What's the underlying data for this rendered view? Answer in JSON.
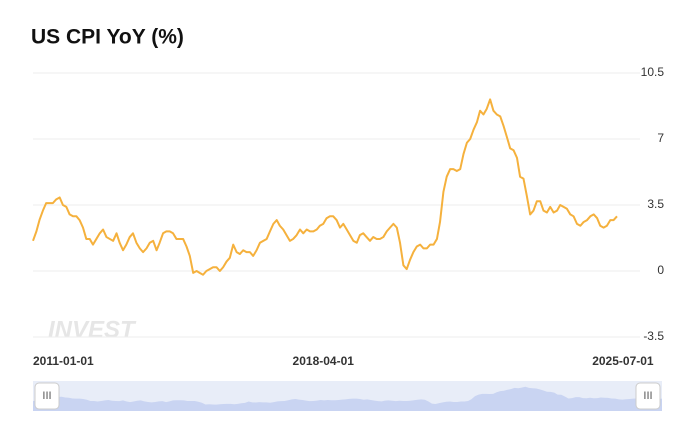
{
  "chart_data": {
    "type": "line",
    "title": "US CPI YoY (%)",
    "watermark": "INVEST",
    "x": [
      "2011-01-01",
      "2011-02-01",
      "2011-03-01",
      "2011-04-01",
      "2011-05-01",
      "2011-06-01",
      "2011-07-01",
      "2011-08-01",
      "2011-09-01",
      "2011-10-01",
      "2011-11-01",
      "2011-12-01",
      "2012-01-01",
      "2012-02-01",
      "2012-03-01",
      "2012-04-01",
      "2012-05-01",
      "2012-06-01",
      "2012-07-01",
      "2012-08-01",
      "2012-09-01",
      "2012-10-01",
      "2012-11-01",
      "2012-12-01",
      "2013-01-01",
      "2013-02-01",
      "2013-03-01",
      "2013-04-01",
      "2013-05-01",
      "2013-06-01",
      "2013-07-01",
      "2013-08-01",
      "2013-09-01",
      "2013-10-01",
      "2013-11-01",
      "2013-12-01",
      "2014-01-01",
      "2014-02-01",
      "2014-03-01",
      "2014-04-01",
      "2014-05-01",
      "2014-06-01",
      "2014-07-01",
      "2014-08-01",
      "2014-09-01",
      "2014-10-01",
      "2014-11-01",
      "2014-12-01",
      "2015-01-01",
      "2015-02-01",
      "2015-03-01",
      "2015-04-01",
      "2015-05-01",
      "2015-06-01",
      "2015-07-01",
      "2015-08-01",
      "2015-09-01",
      "2015-10-01",
      "2015-11-01",
      "2015-12-01",
      "2016-01-01",
      "2016-02-01",
      "2016-03-01",
      "2016-04-01",
      "2016-05-01",
      "2016-06-01",
      "2016-07-01",
      "2016-08-01",
      "2016-09-01",
      "2016-10-01",
      "2016-11-01",
      "2016-12-01",
      "2017-01-01",
      "2017-02-01",
      "2017-03-01",
      "2017-04-01",
      "2017-05-01",
      "2017-06-01",
      "2017-07-01",
      "2017-08-01",
      "2017-09-01",
      "2017-10-01",
      "2017-11-01",
      "2017-12-01",
      "2018-01-01",
      "2018-02-01",
      "2018-03-01",
      "2018-04-01",
      "2018-05-01",
      "2018-06-01",
      "2018-07-01",
      "2018-08-01",
      "2018-09-01",
      "2018-10-01",
      "2018-11-01",
      "2018-12-01",
      "2019-01-01",
      "2019-02-01",
      "2019-03-01",
      "2019-04-01",
      "2019-05-01",
      "2019-06-01",
      "2019-07-01",
      "2019-08-01",
      "2019-09-01",
      "2019-10-01",
      "2019-11-01",
      "2019-12-01",
      "2020-01-01",
      "2020-02-01",
      "2020-03-01",
      "2020-04-01",
      "2020-05-01",
      "2020-06-01",
      "2020-07-01",
      "2020-08-01",
      "2020-09-01",
      "2020-10-01",
      "2020-11-01",
      "2020-12-01",
      "2021-01-01",
      "2021-02-01",
      "2021-03-01",
      "2021-04-01",
      "2021-05-01",
      "2021-06-01",
      "2021-07-01",
      "2021-08-01",
      "2021-09-01",
      "2021-10-01",
      "2021-11-01",
      "2021-12-01",
      "2022-01-01",
      "2022-02-01",
      "2022-03-01",
      "2022-04-01",
      "2022-05-01",
      "2022-06-01",
      "2022-07-01",
      "2022-08-01",
      "2022-09-01",
      "2022-10-01",
      "2022-11-01",
      "2022-12-01",
      "2023-01-01",
      "2023-02-01",
      "2023-03-01",
      "2023-04-01",
      "2023-05-01",
      "2023-06-01",
      "2023-07-01",
      "2023-08-01",
      "2023-09-01",
      "2023-10-01",
      "2023-11-01",
      "2023-12-01",
      "2024-01-01",
      "2024-02-01",
      "2024-03-01",
      "2024-04-01",
      "2024-05-01",
      "2024-06-01",
      "2024-07-01",
      "2024-08-01",
      "2024-09-01",
      "2024-10-01",
      "2024-11-01",
      "2024-12-01",
      "2025-01-01",
      "2025-02-01",
      "2025-03-01",
      "2025-04-01",
      "2025-05-01",
      "2025-06-01",
      "2025-07-01",
      "2025-08-01"
    ],
    "series": [
      {
        "name": "US CPI YoY",
        "color": "#f5b13d",
        "values": [
          1.6,
          2.1,
          2.7,
          3.2,
          3.6,
          3.6,
          3.6,
          3.8,
          3.9,
          3.5,
          3.4,
          3.0,
          2.9,
          2.9,
          2.7,
          2.3,
          1.7,
          1.7,
          1.4,
          1.7,
          2.0,
          2.2,
          1.8,
          1.7,
          1.6,
          2.0,
          1.5,
          1.1,
          1.4,
          1.8,
          2.0,
          1.5,
          1.2,
          1.0,
          1.2,
          1.5,
          1.6,
          1.1,
          1.5,
          2.0,
          2.1,
          2.1,
          2.0,
          1.7,
          1.7,
          1.7,
          1.3,
          0.8,
          -0.1,
          0.0,
          -0.1,
          -0.2,
          0.0,
          0.1,
          0.2,
          0.2,
          0.0,
          0.2,
          0.5,
          0.7,
          1.4,
          1.0,
          0.9,
          1.1,
          1.0,
          1.0,
          0.8,
          1.1,
          1.5,
          1.6,
          1.7,
          2.1,
          2.5,
          2.7,
          2.4,
          2.2,
          1.9,
          1.6,
          1.7,
          1.9,
          2.2,
          2.0,
          2.2,
          2.1,
          2.1,
          2.2,
          2.4,
          2.5,
          2.8,
          2.9,
          2.9,
          2.7,
          2.3,
          2.5,
          2.2,
          1.9,
          1.6,
          1.5,
          1.9,
          2.0,
          1.8,
          1.6,
          1.8,
          1.7,
          1.7,
          1.8,
          2.1,
          2.3,
          2.5,
          2.3,
          1.5,
          0.3,
          0.1,
          0.6,
          1.0,
          1.3,
          1.4,
          1.2,
          1.2,
          1.4,
          1.4,
          1.7,
          2.6,
          4.2,
          5.0,
          5.4,
          5.4,
          5.3,
          5.4,
          6.2,
          6.8,
          7.0,
          7.5,
          7.9,
          8.5,
          8.3,
          8.6,
          9.1,
          8.5,
          8.3,
          8.2,
          7.7,
          7.1,
          6.5,
          6.4,
          6.0,
          5.0,
          4.9,
          4.0,
          3.0,
          3.2,
          3.7,
          3.7,
          3.2,
          3.1,
          3.4,
          3.1,
          3.2,
          3.5,
          3.4,
          3.3,
          3.0,
          2.9,
          2.5,
          2.4,
          2.6,
          2.7,
          2.9,
          3.0,
          2.8,
          2.4,
          2.3,
          2.4,
          2.7,
          2.7,
          2.9
        ]
      }
    ],
    "xlim": [
      "2011-01-01",
      "2025-08-01"
    ],
    "xticks": [
      "2011-01-01",
      "2018-04-01",
      "2025-07-01"
    ],
    "ylim": [
      -3.5,
      10.5
    ],
    "yticks": [
      -3.5,
      0,
      3.5,
      7,
      10.5
    ],
    "grid": true,
    "slider_handles": [
      "III",
      "III"
    ]
  }
}
